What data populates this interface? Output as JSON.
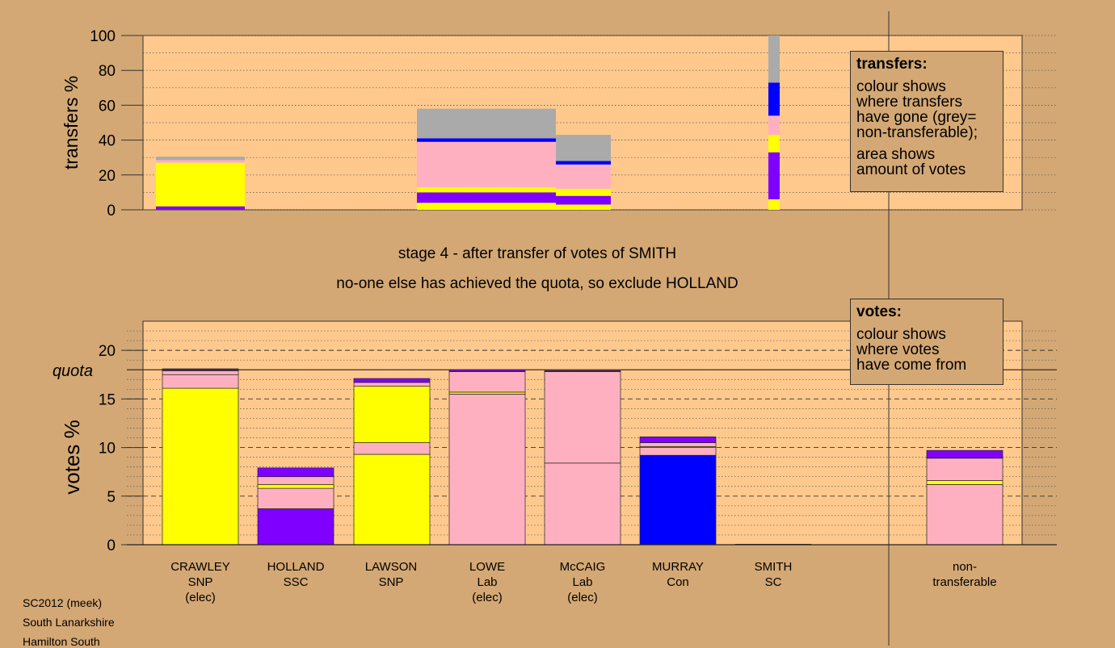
{
  "colors": {
    "background": "#d4a874",
    "plot_area": "#ffc98e",
    "yellow": "#ffff00",
    "purple": "#8000ff",
    "pink": "#ffb0c0",
    "blue": "#0000ff",
    "grey": "#aaaaaa"
  },
  "captions": {
    "stage": "stage 4 - after transfer of votes of SMITH",
    "action": "no-one else has achieved the quota, so exclude HOLLAND"
  },
  "footer": [
    "SC2012 (meek)",
    "South Lanarkshire",
    "Hamilton South"
  ],
  "legend_transfers": {
    "title": "transfers:",
    "lines_a": [
      "colour shows",
      "where transfers",
      "have gone (grey=",
      "non-transferable);"
    ],
    "lines_b": [
      "area shows",
      "amount of votes"
    ]
  },
  "legend_votes": {
    "title": "votes:",
    "lines": [
      "colour shows",
      "where votes",
      "have come from"
    ]
  },
  "candidates": [
    {
      "name": "CRAWLEY",
      "party": "SNP",
      "status": "(elec)"
    },
    {
      "name": "HOLLAND",
      "party": "SSC",
      "status": ""
    },
    {
      "name": "LAWSON",
      "party": "SNP",
      "status": ""
    },
    {
      "name": "LOWE",
      "party": "Lab",
      "status": "(elec)"
    },
    {
      "name": "McCAIG",
      "party": "Lab",
      "status": "(elec)"
    },
    {
      "name": "MURRAY",
      "party": "Con",
      "status": ""
    },
    {
      "name": "SMITH",
      "party": "SC",
      "status": ""
    }
  ],
  "nontransferable_label": [
    "non-",
    "transferable"
  ],
  "chart_data": [
    {
      "type": "bar",
      "ylabel": "transfers %",
      "ylim": [
        0,
        100
      ],
      "yticks": [
        0,
        20,
        40,
        60,
        80,
        100
      ],
      "columns": [
        {
          "candidate": "CRAWLEY",
          "segments": [
            {
              "color": "purple",
              "value": 2
            },
            {
              "color": "yellow",
              "value": 25
            },
            {
              "color": "pink",
              "value": 1.5
            },
            {
              "color": "grey",
              "value": 2
            }
          ]
        },
        {
          "candidate": "LAWSON",
          "segments": [
            {
              "color": "yellow",
              "value": 4
            },
            {
              "color": "purple",
              "value": 6
            },
            {
              "color": "yellow",
              "value": 3
            },
            {
              "color": "pink",
              "value": 26
            },
            {
              "color": "blue",
              "value": 2
            },
            {
              "color": "grey",
              "value": 17
            }
          ]
        },
        {
          "candidate": "LOWE",
          "segments": [
            {
              "color": "yellow",
              "value": 3
            },
            {
              "color": "purple",
              "value": 5
            },
            {
              "color": "yellow",
              "value": 4
            },
            {
              "color": "pink",
              "value": 14
            },
            {
              "color": "blue",
              "value": 2
            },
            {
              "color": "grey",
              "value": 15
            }
          ]
        },
        {
          "candidate": "SMITH",
          "segments": [
            {
              "color": "yellow",
              "value": 6
            },
            {
              "color": "purple",
              "value": 27
            },
            {
              "color": "yellow",
              "value": 10
            },
            {
              "color": "pink",
              "value": 11
            },
            {
              "color": "blue",
              "value": 19
            },
            {
              "color": "grey",
              "value": 27
            }
          ]
        }
      ]
    },
    {
      "type": "bar",
      "ylabel": "votes %",
      "ylim": [
        0,
        23
      ],
      "yticks": [
        0,
        5,
        10,
        15,
        20
      ],
      "quota_label": "quota",
      "quota": 18.0,
      "categories": [
        "CRAWLEY",
        "HOLLAND",
        "LAWSON",
        "LOWE",
        "McCAIG",
        "MURRAY",
        "SMITH",
        "non-transferable"
      ],
      "stacks": [
        {
          "category": "CRAWLEY",
          "segments": [
            {
              "color": "yellow",
              "value": 16.1
            },
            {
              "color": "pink",
              "value": 1.4
            },
            {
              "color": "pink",
              "value": 0.4
            },
            {
              "color": "purple",
              "value": 0.2
            }
          ]
        },
        {
          "category": "HOLLAND",
          "segments": [
            {
              "color": "purple",
              "value": 3.7
            },
            {
              "color": "pink",
              "value": 2.1
            },
            {
              "color": "yellow",
              "value": 0.4
            },
            {
              "color": "pink",
              "value": 0.8
            },
            {
              "color": "purple",
              "value": 0.9
            }
          ]
        },
        {
          "category": "LAWSON",
          "segments": [
            {
              "color": "yellow",
              "value": 9.3
            },
            {
              "color": "pink",
              "value": 1.2
            },
            {
              "color": "yellow",
              "value": 5.8
            },
            {
              "color": "pink",
              "value": 0.4
            },
            {
              "color": "purple",
              "value": 0.4
            }
          ]
        },
        {
          "category": "LOWE",
          "segments": [
            {
              "color": "pink",
              "value": 15.5
            },
            {
              "color": "yellow",
              "value": 0.2
            },
            {
              "color": "pink",
              "value": 2.1
            },
            {
              "color": "purple",
              "value": 0.2
            }
          ]
        },
        {
          "category": "McCAIG",
          "segments": [
            {
              "color": "pink",
              "value": 8.4
            },
            {
              "color": "pink",
              "value": 9.4
            },
            {
              "color": "purple",
              "value": 0.1
            }
          ]
        },
        {
          "category": "MURRAY",
          "segments": [
            {
              "color": "blue",
              "value": 9.2
            },
            {
              "color": "pink",
              "value": 0.8
            },
            {
              "color": "yellow",
              "value": 0.1
            },
            {
              "color": "pink",
              "value": 0.4
            },
            {
              "color": "purple",
              "value": 0.6
            }
          ]
        },
        {
          "category": "SMITH",
          "segments": [
            {
              "color": "pink",
              "value": 0.05
            }
          ]
        },
        {
          "category": "non-transferable",
          "segments": [
            {
              "color": "pink",
              "value": 6.2
            },
            {
              "color": "yellow",
              "value": 0.4
            },
            {
              "color": "pink",
              "value": 2.3
            },
            {
              "color": "purple",
              "value": 0.8
            }
          ]
        }
      ]
    }
  ]
}
